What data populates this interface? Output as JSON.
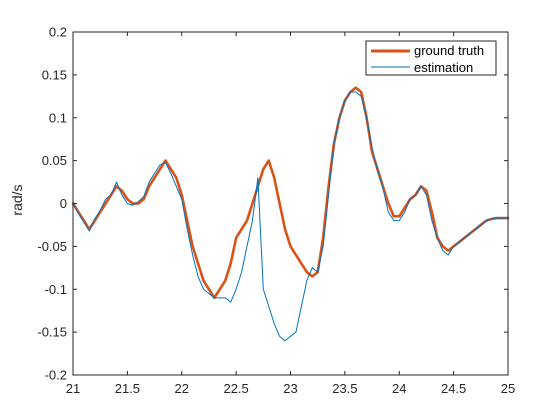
{
  "chart_data": {
    "type": "line",
    "title": "",
    "xlabel": "",
    "ylabel": "rad/s",
    "xlim": [
      21,
      25
    ],
    "ylim": [
      -0.2,
      0.2
    ],
    "grid": false,
    "legend_position": "top-right",
    "x_ticks": [
      "21",
      "21.5",
      "22",
      "22.5",
      "23",
      "23.5",
      "24",
      "24.5",
      "25"
    ],
    "y_ticks": [
      "0.2",
      "0.15",
      "0.1",
      "0.05",
      "0",
      "-0.05",
      "-0.1",
      "-0.15",
      "-0.2"
    ],
    "series": [
      {
        "name": "ground truth",
        "color": "#D95319",
        "x": [
          21.0,
          21.05,
          21.1,
          21.15,
          21.2,
          21.25,
          21.3,
          21.35,
          21.4,
          21.45,
          21.5,
          21.55,
          21.6,
          21.65,
          21.7,
          21.75,
          21.8,
          21.85,
          21.9,
          21.95,
          22.0,
          22.05,
          22.1,
          22.15,
          22.2,
          22.25,
          22.3,
          22.35,
          22.4,
          22.45,
          22.5,
          22.55,
          22.6,
          22.65,
          22.7,
          22.75,
          22.8,
          22.85,
          22.9,
          22.95,
          23.0,
          23.05,
          23.1,
          23.15,
          23.2,
          23.25,
          23.3,
          23.35,
          23.4,
          23.45,
          23.5,
          23.55,
          23.6,
          23.65,
          23.7,
          23.75,
          23.8,
          23.85,
          23.9,
          23.95,
          24.0,
          24.05,
          24.1,
          24.15,
          24.2,
          24.25,
          24.3,
          24.35,
          24.4,
          24.45,
          24.5,
          24.55,
          24.6,
          24.65,
          24.7,
          24.75,
          24.8,
          24.85,
          24.9,
          24.95,
          25.0
        ],
        "y": [
          0.0,
          -0.01,
          -0.02,
          -0.03,
          -0.02,
          -0.01,
          0.0,
          0.01,
          0.02,
          0.015,
          0.005,
          0.0,
          0.0,
          0.005,
          0.02,
          0.03,
          0.04,
          0.05,
          0.04,
          0.03,
          0.01,
          -0.02,
          -0.05,
          -0.07,
          -0.09,
          -0.1,
          -0.11,
          -0.1,
          -0.09,
          -0.07,
          -0.04,
          -0.03,
          -0.02,
          0.0,
          0.02,
          0.04,
          0.05,
          0.03,
          0.0,
          -0.03,
          -0.05,
          -0.06,
          -0.07,
          -0.08,
          -0.085,
          -0.08,
          -0.04,
          0.02,
          0.07,
          0.1,
          0.12,
          0.13,
          0.135,
          0.13,
          0.1,
          0.06,
          0.04,
          0.02,
          0.0,
          -0.015,
          -0.015,
          -0.005,
          0.005,
          0.01,
          0.02,
          0.015,
          -0.01,
          -0.04,
          -0.05,
          -0.055,
          -0.05,
          -0.045,
          -0.04,
          -0.035,
          -0.03,
          -0.025,
          -0.02,
          -0.018,
          -0.017,
          -0.017,
          -0.017
        ]
      },
      {
        "name": "estimation",
        "color": "#0072BD",
        "x": [
          21.0,
          21.05,
          21.1,
          21.15,
          21.2,
          21.25,
          21.3,
          21.35,
          21.4,
          21.45,
          21.5,
          21.55,
          21.6,
          21.65,
          21.7,
          21.75,
          21.8,
          21.85,
          21.9,
          21.95,
          22.0,
          22.05,
          22.1,
          22.15,
          22.2,
          22.25,
          22.3,
          22.35,
          22.4,
          22.45,
          22.5,
          22.55,
          22.6,
          22.65,
          22.7,
          22.75,
          22.8,
          22.85,
          22.9,
          22.95,
          23.0,
          23.05,
          23.1,
          23.15,
          23.2,
          23.25,
          23.3,
          23.35,
          23.4,
          23.45,
          23.5,
          23.55,
          23.6,
          23.65,
          23.7,
          23.75,
          23.8,
          23.85,
          23.9,
          23.95,
          24.0,
          24.05,
          24.1,
          24.15,
          24.2,
          24.25,
          24.3,
          24.35,
          24.4,
          24.45,
          24.5,
          24.55,
          24.6,
          24.65,
          24.7,
          24.75,
          24.8,
          24.85,
          24.9,
          24.95,
          25.0
        ],
        "y": [
          0.0,
          -0.012,
          -0.022,
          -0.032,
          -0.018,
          -0.008,
          0.005,
          0.01,
          0.025,
          0.01,
          0.0,
          -0.002,
          0.002,
          0.008,
          0.025,
          0.035,
          0.045,
          0.048,
          0.035,
          0.02,
          0.005,
          -0.03,
          -0.06,
          -0.085,
          -0.1,
          -0.105,
          -0.11,
          -0.11,
          -0.11,
          -0.115,
          -0.1,
          -0.08,
          -0.05,
          -0.02,
          0.03,
          -0.1,
          -0.12,
          -0.14,
          -0.155,
          -0.16,
          -0.155,
          -0.15,
          -0.12,
          -0.09,
          -0.075,
          -0.08,
          -0.05,
          0.01,
          0.07,
          0.1,
          0.12,
          0.13,
          0.13,
          0.125,
          0.1,
          0.065,
          0.04,
          0.018,
          -0.01,
          -0.02,
          -0.02,
          -0.01,
          0.005,
          0.01,
          0.02,
          0.01,
          -0.02,
          -0.04,
          -0.055,
          -0.06,
          -0.05,
          -0.045,
          -0.04,
          -0.035,
          -0.03,
          -0.025,
          -0.02,
          -0.018,
          -0.017,
          -0.017,
          -0.017
        ]
      }
    ]
  }
}
